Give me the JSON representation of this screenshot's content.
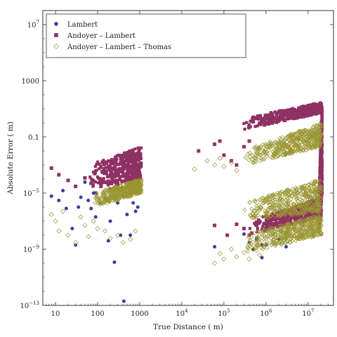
{
  "chart_data": {
    "type": "scatter",
    "xscale": "log",
    "yscale": "log",
    "xlim": [
      5,
      40000000
    ],
    "ylim": [
      1e-13,
      100000000.0
    ],
    "xlabel": "True Distance ( m)",
    "ylabel": "Absolute Error ( m)",
    "x_ticks": [
      {
        "value": 10,
        "label": "10"
      },
      {
        "value": 100,
        "label": "100"
      },
      {
        "value": 1000,
        "label": "1000"
      },
      {
        "value": 10000,
        "label": "10",
        "exp": "4"
      },
      {
        "value": 100000,
        "label": "10",
        "exp": "5"
      },
      {
        "value": 1000000,
        "label": "10",
        "exp": "6"
      },
      {
        "value": 10000000,
        "label": "10",
        "exp": "7"
      }
    ],
    "y_ticks": [
      {
        "value": 1e-13,
        "label": "10",
        "exp": "−13"
      },
      {
        "value": 1e-09,
        "label": "10",
        "exp": "−9"
      },
      {
        "value": 1e-05,
        "label": "10",
        "exp": "−5"
      },
      {
        "value": 0.1,
        "label": "0.1"
      },
      {
        "value": 1000,
        "label": "1000"
      },
      {
        "value": 10000000.0,
        "label": "10",
        "exp": "7"
      }
    ],
    "legend_position": "top-left",
    "grid": false,
    "series": [
      {
        "name": "Lambert",
        "marker": "circle",
        "color": "#3b3f95",
        "points": [
          [
            8,
            6e-06
          ],
          [
            12,
            3e-06
          ],
          [
            15,
            1.5e-05
          ],
          [
            18,
            8e-07
          ],
          [
            25,
            3e-08
          ],
          [
            30,
            2e-09
          ],
          [
            35,
            1e-06
          ],
          [
            40,
            5e-06
          ],
          [
            50,
            6e-05
          ],
          [
            60,
            3e-06
          ],
          [
            70,
            8e-07
          ],
          [
            80,
            1e-05
          ],
          [
            90,
            2e-07
          ],
          [
            120,
            2e-06
          ],
          [
            150,
            4e-06
          ],
          [
            180,
            4e-09
          ],
          [
            200,
            1e-07
          ],
          [
            250,
            1.2e-10
          ],
          [
            300,
            2e-06
          ],
          [
            350,
            1e-08
          ],
          [
            420,
            2e-13
          ],
          [
            500,
            3e-07
          ],
          [
            600,
            1e-08
          ],
          [
            700,
            2e-06
          ],
          [
            800,
            5e-07
          ],
          [
            900,
            1e-06
          ],
          [
            60000,
            1.5e-09
          ],
          [
            300000,
            1.2e-08
          ],
          [
            400000,
            3e-09
          ],
          [
            500000,
            1e-09
          ],
          [
            600000,
            6e-09
          ],
          [
            800000,
            2.5e-10
          ],
          [
            1000000,
            2e-09
          ],
          [
            2000000,
            5e-09
          ],
          [
            3000000,
            1.5e-09
          ]
        ]
      },
      {
        "name": "Andoyer – Lambert",
        "marker": "square",
        "color": "#8e3163",
        "points": [
          [
            8,
            0.0006
          ],
          [
            12,
            0.0002
          ],
          [
            20,
            8e-05
          ],
          [
            30,
            3e-05
          ],
          [
            50,
            0.00012
          ],
          [
            70,
            5e-05
          ],
          [
            90,
            1e-05
          ],
          [
            120,
            3e-05
          ],
          [
            150,
            6e-05
          ],
          [
            200,
            2e-05
          ],
          [
            300,
            4e-05
          ],
          [
            400,
            2e-05
          ],
          [
            500,
            0.0001
          ],
          [
            700,
            5e-05
          ],
          [
            25000,
            0.01
          ],
          [
            60000,
            0.03
          ],
          [
            80000,
            0.05
          ],
          [
            100000,
            0.005
          ],
          [
            150000,
            0.002
          ],
          [
            200000,
            0.001
          ],
          [
            300000,
            0.02
          ],
          [
            400000,
            0.05
          ],
          [
            60000,
            5e-08
          ],
          [
            120000,
            1e-08
          ],
          [
            200000,
            6e-08
          ],
          [
            300000,
            3e-08
          ],
          [
            400000,
            1e-08
          ],
          [
            600000,
            5e-09
          ],
          [
            800000,
            2e-09
          ],
          [
            1000000,
            3e-08
          ]
        ],
        "bands": [
          {
            "x_range": [
              60,
              1100
            ],
            "y_start": [
              2e-05,
              0.001
            ],
            "y_end": [
              0.0001,
              0.02
            ]
          },
          {
            "x_range": [
              250000,
              21000000
            ],
            "y_start": [
              0.3,
              2.0
            ],
            "y_end": [
              5,
              30
            ]
          },
          {
            "x_range": [
              400000,
              21000000
            ],
            "y_start": [
              1e-08,
              1e-07
            ],
            "y_end": [
              2e-07,
              5e-06
            ]
          },
          {
            "x_range": [
              18000000,
              21500000
            ],
            "y_start": [
              1e-08,
              1e-05
            ],
            "y_end": [
              1e-05,
              30
            ]
          }
        ]
      },
      {
        "name": "Andoyer – Lambert – Thomas",
        "marker": "diamond",
        "color": "#9a9633",
        "points": [
          [
            8,
            3e-07
          ],
          [
            10,
            1e-07
          ],
          [
            12,
            2e-08
          ],
          [
            15,
            5e-07
          ],
          [
            20,
            1e-08
          ],
          [
            30,
            3e-09
          ],
          [
            40,
            2e-07
          ],
          [
            50,
            5e-08
          ],
          [
            60,
            8e-09
          ],
          [
            80,
            1e-07
          ],
          [
            100,
            3e-08
          ],
          [
            150,
            2e-08
          ],
          [
            200,
            6e-09
          ],
          [
            300,
            1e-08
          ],
          [
            400,
            3e-09
          ],
          [
            600,
            5e-09
          ],
          [
            800,
            2e-08
          ],
          [
            20000,
            0.0005
          ],
          [
            40000,
            0.002
          ],
          [
            60000,
            0.001
          ],
          [
            80000,
            0.003
          ],
          [
            100000,
            0.0008
          ],
          [
            150000,
            0.0015
          ],
          [
            200000,
            0.0004
          ],
          [
            60000,
            1e-10
          ],
          [
            80000,
            5e-10
          ],
          [
            100000,
            2e-10
          ],
          [
            150000,
            1e-09
          ],
          [
            200000,
            3e-10
          ],
          [
            300000,
            6e-10
          ],
          [
            400000,
            2e-10
          ],
          [
            500000,
            1e-09
          ],
          [
            700000,
            4e-10
          ]
        ],
        "bands": [
          {
            "x_range": [
              80,
              1100
            ],
            "y_start": [
              1e-06,
              1e-05
            ],
            "y_end": [
              1e-05,
              0.0001
            ]
          },
          {
            "x_range": [
              300000,
              21000000
            ],
            "y_start": [
              0.001,
              0.01
            ],
            "y_end": [
              0.02,
              1
            ]
          },
          {
            "x_range": [
              300000,
              21000000
            ],
            "y_start": [
              5e-10,
              1e-08
            ],
            "y_end": [
              1e-08,
              3e-07
            ]
          },
          {
            "x_range": [
              300000,
              21000000
            ],
            "y_start": [
              1e-07,
              2e-06
            ],
            "y_end": [
              5e-07,
              0.0001
            ]
          }
        ]
      }
    ]
  }
}
